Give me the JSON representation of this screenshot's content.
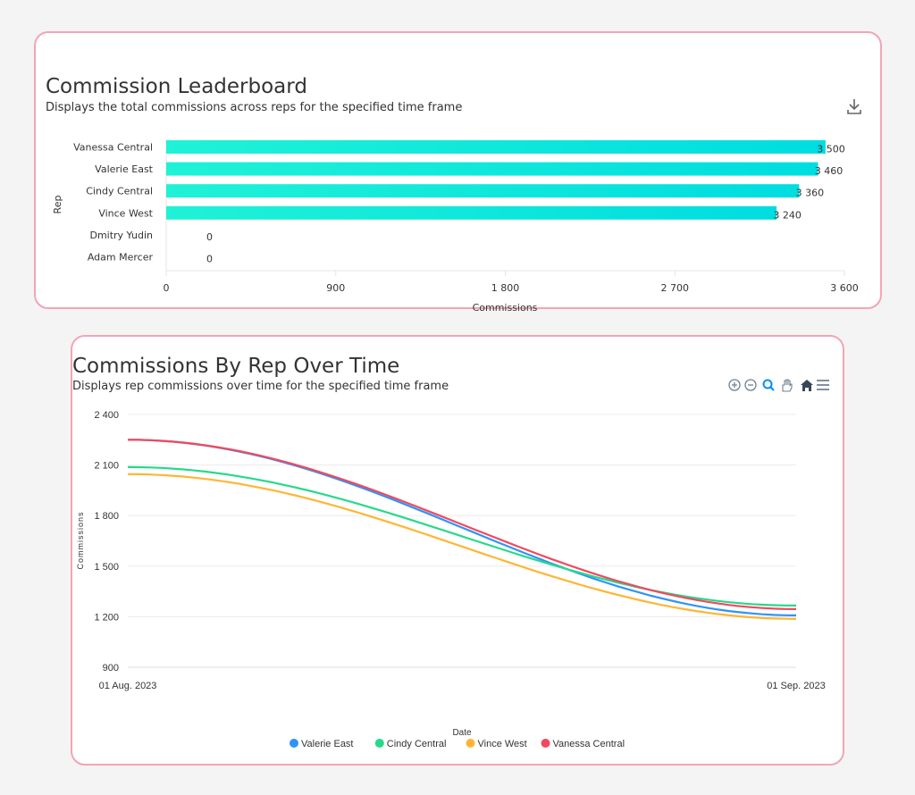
{
  "leaderboard": {
    "title": "Commission Leaderboard",
    "subtitle": "Displays the total commissions across reps for the specified time frame",
    "download_icon": "download-icon"
  },
  "over_time": {
    "title": "Commissions By Rep Over Time",
    "subtitle": "Displays rep commissions over time for the specified time frame",
    "toolbar": [
      "zoom-in-icon",
      "zoom-out-icon",
      "zoom-select-icon",
      "pan-hand-icon",
      "home-reset-icon",
      "menu-icon"
    ]
  },
  "chart_data": [
    {
      "type": "bar",
      "orientation": "horizontal",
      "categories": [
        "Vanessa Central",
        "Valerie East",
        "Cindy Central",
        "Vince West",
        "Dmitry Yudin",
        "Adam Mercer"
      ],
      "values": [
        3500,
        3460,
        3360,
        3240,
        0,
        0
      ],
      "data_labels": [
        "3 500",
        "3 460",
        "3 360",
        "3 240",
        "0",
        "0"
      ],
      "xlabel": "Commissions",
      "ylabel": "Rep",
      "xlim": [
        0,
        3600
      ],
      "xticks": [
        "0",
        "900",
        "1 800",
        "2 700",
        "3 600"
      ],
      "bar_color_gradient": [
        "#1ff2d6",
        "#00dde0"
      ]
    },
    {
      "type": "line",
      "x": [
        "01 Aug. 2023",
        "01 Sep. 2023"
      ],
      "xlabel": "Date",
      "ylabel": "Commissions",
      "ylim": [
        900,
        2400
      ],
      "yticks": [
        "2 400",
        "2 100",
        "1 800",
        "1 500",
        "1 200",
        "900"
      ],
      "grid": true,
      "legend": "bottom",
      "series": [
        {
          "name": "Valerie East",
          "color": "#2e93fa",
          "values": [
            2250,
            1208
          ]
        },
        {
          "name": "Cindy Central",
          "color": "#26d98b",
          "values": [
            2088,
            1266
          ]
        },
        {
          "name": "Vince West",
          "color": "#ffb534",
          "values": [
            2046,
            1187
          ]
        },
        {
          "name": "Vanessa Central",
          "color": "#f2485e",
          "values": [
            2250,
            1245
          ]
        }
      ]
    }
  ]
}
